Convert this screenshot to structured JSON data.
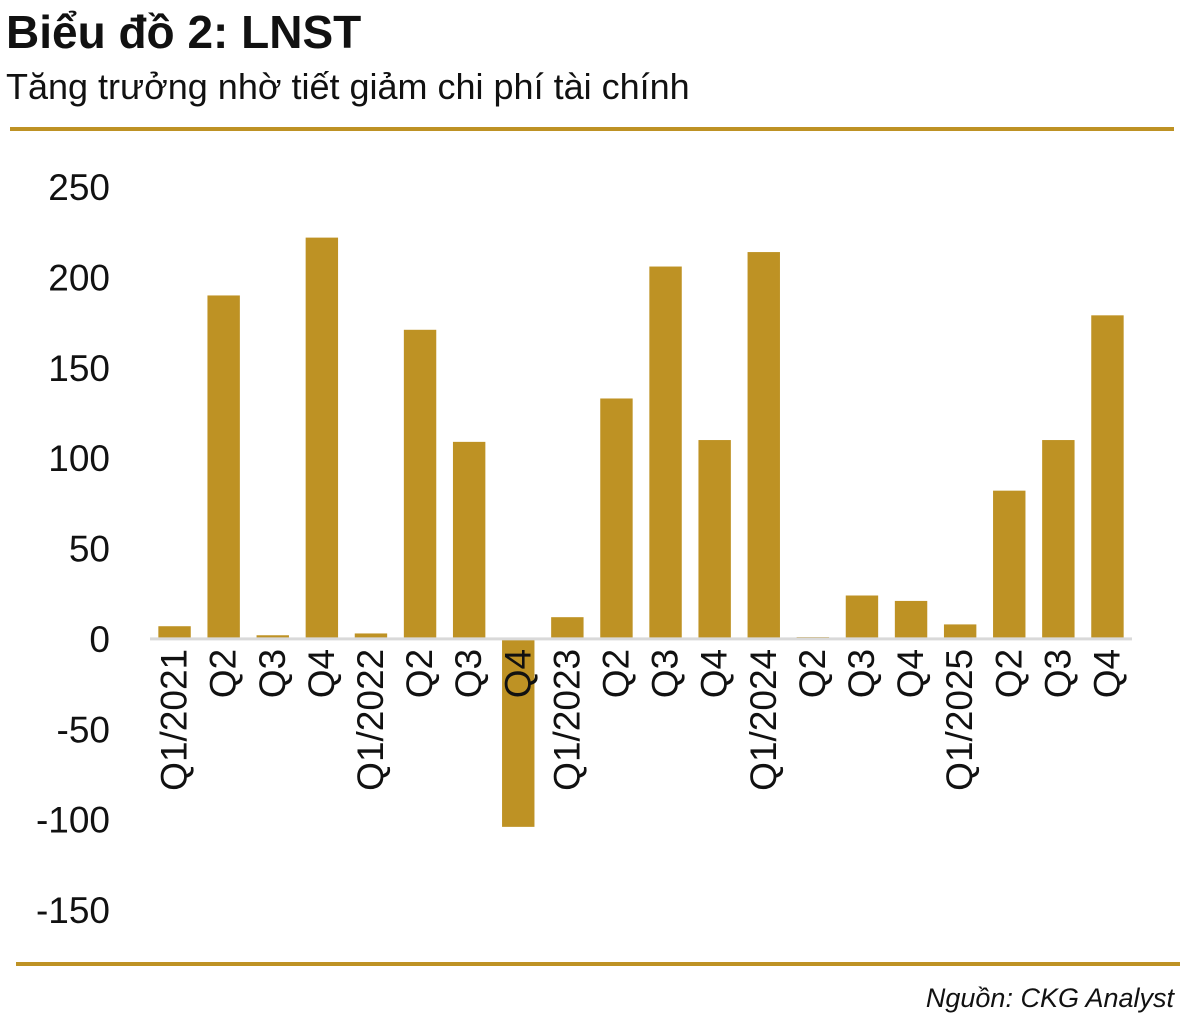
{
  "header": {
    "title": "Biểu đồ 2: LNST",
    "subtitle": "Tăng trưởng nhờ tiết giảm chi phí tài chính"
  },
  "footer": {
    "source": "Nguồn: CKG Analyst"
  },
  "colors": {
    "bar": "#BE9224",
    "rule": "#BE9224",
    "zero_line": "#D9D9D9",
    "text": "#111111"
  },
  "chart_data": {
    "type": "bar",
    "title": "Biểu đồ 2: LNST",
    "subtitle": "Tăng trưởng nhờ tiết giảm chi phí tài chính",
    "xlabel": "",
    "ylabel": "",
    "ylim": [
      -150,
      250
    ],
    "yticks": [
      250,
      200,
      150,
      100,
      50,
      0,
      -50,
      -100,
      -150
    ],
    "grid": false,
    "legend": "none",
    "categories": [
      "Q1/2021",
      "Q2",
      "Q3",
      "Q4",
      "Q1/2022",
      "Q2",
      "Q3",
      "Q4",
      "Q1/2023",
      "Q2",
      "Q3",
      "Q4",
      "Q1/2024",
      "Q2",
      "Q3",
      "Q4",
      "Q1/2025",
      "Q2",
      "Q3",
      "Q4"
    ],
    "values": [
      7,
      190,
      2,
      222,
      3,
      171,
      109,
      -104,
      12,
      133,
      206,
      110,
      214,
      1,
      24,
      21,
      8,
      82,
      110,
      179
    ]
  }
}
